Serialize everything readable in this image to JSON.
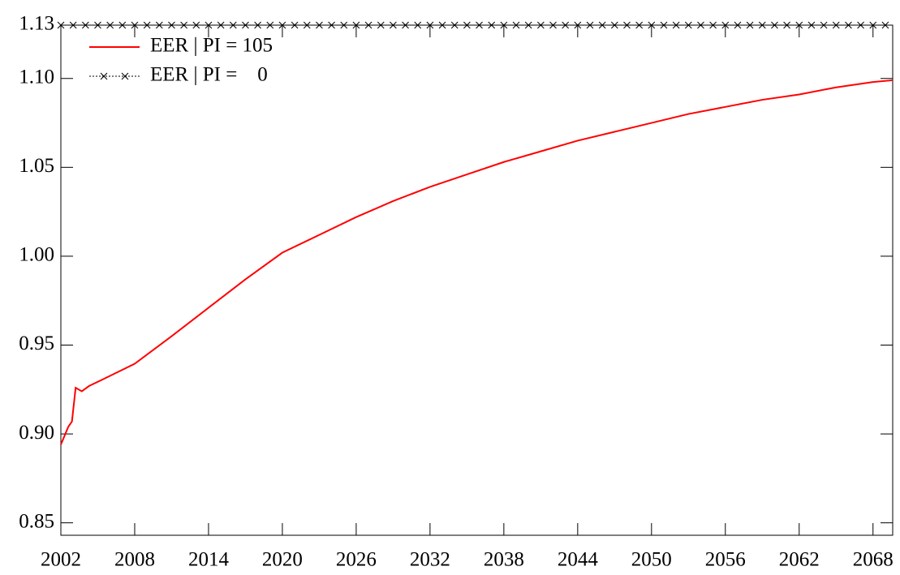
{
  "chart_data": {
    "type": "line",
    "xlim": [
      2002,
      2069.6
    ],
    "xticks": [
      2002,
      2008,
      2014,
      2020,
      2026,
      2032,
      2038,
      2044,
      2050,
      2056,
      2062,
      2068
    ],
    "ylim": [
      0.843,
      1.13
    ],
    "yticks": [
      {
        "value": 0.85,
        "label": "0.85"
      },
      {
        "value": 0.9,
        "label": "0.90"
      },
      {
        "value": 0.95,
        "label": "0.95"
      },
      {
        "value": 1.0,
        "label": "1.00"
      },
      {
        "value": 1.05,
        "label": "1.05"
      },
      {
        "value": 1.1,
        "label": "1.10"
      },
      1.13
    ],
    "legend": "upper left",
    "series": [
      {
        "name": "EER | PI = 105",
        "color": "#ff0000",
        "marker": "none",
        "x": [
          2002,
          2002.6,
          2002.9,
          2003.2,
          2003.7,
          2004.3,
          2005.5,
          2008,
          2011,
          2014,
          2017,
          2020,
          2023,
          2026,
          2029,
          2032,
          2035,
          2038,
          2041,
          2044,
          2047,
          2050,
          2053,
          2056,
          2059,
          2062,
          2065,
          2068,
          2069.6
        ],
        "values": [
          0.894,
          0.904,
          0.907,
          0.926,
          0.924,
          0.927,
          0.931,
          0.9395,
          0.955,
          0.971,
          0.987,
          1.002,
          1.012,
          1.022,
          1.031,
          1.039,
          1.046,
          1.053,
          1.059,
          1.065,
          1.07,
          1.075,
          1.08,
          1.084,
          1.088,
          1.091,
          1.095,
          1.098,
          1.099
        ]
      },
      {
        "name": "EER | PI =    0",
        "color": "#000000",
        "marker": "x",
        "x": [
          2002,
          2003,
          2004,
          2005,
          2006,
          2007,
          2008,
          2009,
          2010,
          2011,
          2012,
          2013,
          2014,
          2015,
          2016,
          2017,
          2018,
          2019,
          2020,
          2021,
          2022,
          2023,
          2024,
          2025,
          2026,
          2027,
          2028,
          2029,
          2030,
          2031,
          2032,
          2033,
          2034,
          2035,
          2036,
          2037,
          2038,
          2039,
          2040,
          2041,
          2042,
          2043,
          2044,
          2045,
          2046,
          2047,
          2048,
          2049,
          2050,
          2051,
          2052,
          2053,
          2054,
          2055,
          2056,
          2057,
          2058,
          2059,
          2060,
          2061,
          2062,
          2063,
          2064,
          2065,
          2066,
          2067,
          2068,
          2069
        ],
        "values": [
          1.13,
          1.13,
          1.13,
          1.13,
          1.13,
          1.13,
          1.13,
          1.13,
          1.13,
          1.13,
          1.13,
          1.13,
          1.13,
          1.13,
          1.13,
          1.13,
          1.13,
          1.13,
          1.13,
          1.13,
          1.13,
          1.13,
          1.13,
          1.13,
          1.13,
          1.13,
          1.13,
          1.13,
          1.13,
          1.13,
          1.13,
          1.13,
          1.13,
          1.13,
          1.13,
          1.13,
          1.13,
          1.13,
          1.13,
          1.13,
          1.13,
          1.13,
          1.13,
          1.13,
          1.13,
          1.13,
          1.13,
          1.13,
          1.13,
          1.13,
          1.13,
          1.13,
          1.13,
          1.13,
          1.13,
          1.13,
          1.13,
          1.13,
          1.13,
          1.13,
          1.13,
          1.13,
          1.13,
          1.13,
          1.13,
          1.13,
          1.13,
          1.13
        ]
      }
    ]
  }
}
